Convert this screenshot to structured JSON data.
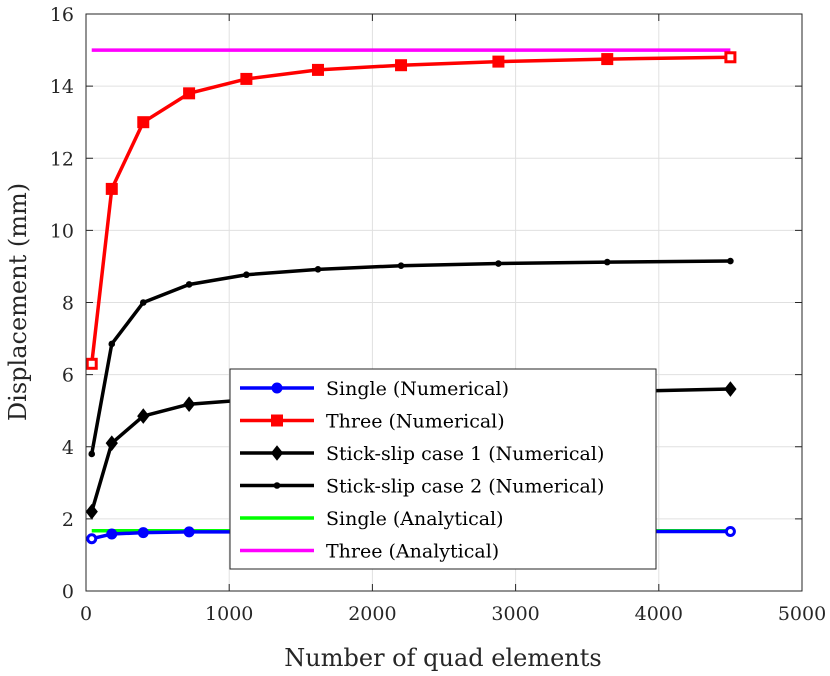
{
  "chart_data": {
    "type": "line",
    "title": "",
    "xlabel": "Number of quad elements",
    "ylabel": "Displacement (mm)",
    "xlim": [
      0,
      5000
    ],
    "ylim": [
      0,
      16
    ],
    "xticks": [
      0,
      1000,
      2000,
      3000,
      4000,
      5000
    ],
    "yticks": [
      0,
      2,
      4,
      6,
      8,
      10,
      12,
      14,
      16
    ],
    "grid": true,
    "legend_position": "center",
    "series": [
      {
        "name": "Single (Numerical)",
        "color": "#0000ff",
        "marker": "circle",
        "x": [
          40,
          180,
          400,
          720,
          4500
        ],
        "y": [
          1.45,
          1.58,
          1.62,
          1.64,
          1.65
        ]
      },
      {
        "name": "Three (Numerical)",
        "color": "#ff0000",
        "marker": "square",
        "x": [
          40,
          180,
          400,
          720,
          1120,
          1620,
          2200,
          2880,
          3640,
          4500
        ],
        "y": [
          6.3,
          11.15,
          13.0,
          13.8,
          14.2,
          14.45,
          14.58,
          14.68,
          14.75,
          14.8
        ]
      },
      {
        "name": "Stick-slip case 1 (Numerical)",
        "color": "#000000",
        "marker": "diamond",
        "x": [
          40,
          180,
          400,
          720,
          1120,
          4500
        ],
        "y": [
          2.2,
          4.1,
          4.85,
          5.18,
          5.3,
          5.6
        ]
      },
      {
        "name": "Stick-slip case 2 (Numerical)",
        "color": "#000000",
        "marker": "dot",
        "x": [
          40,
          180,
          400,
          720,
          1120,
          1620,
          2200,
          2880,
          3640,
          4500
        ],
        "y": [
          3.8,
          6.85,
          8.0,
          8.5,
          8.77,
          8.92,
          9.02,
          9.08,
          9.12,
          9.15
        ]
      },
      {
        "name": "Single (Analytical)",
        "color": "#00ff00",
        "marker": "none",
        "x": [
          40,
          4500
        ],
        "y": [
          1.67,
          1.67
        ]
      },
      {
        "name": "Three (Analytical)",
        "color": "#ff00ff",
        "marker": "none",
        "x": [
          40,
          4500
        ],
        "y": [
          15.0,
          15.0
        ]
      }
    ]
  }
}
